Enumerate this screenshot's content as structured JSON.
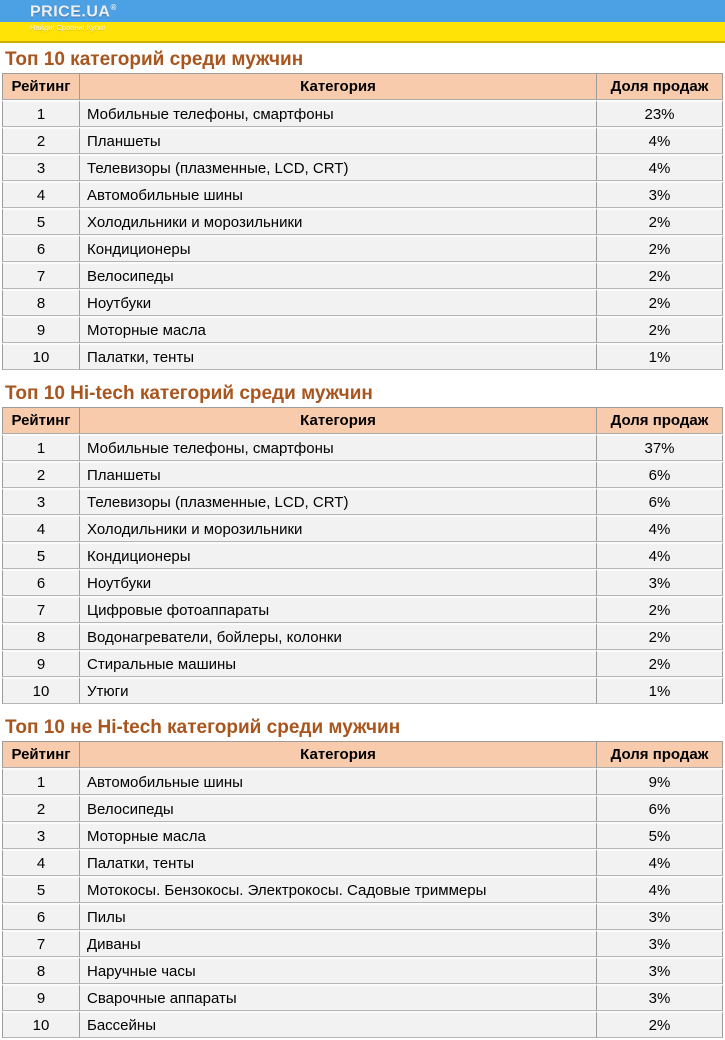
{
  "logo": {
    "brand": "PRICE.UA",
    "reg_mark": "®",
    "tagline": "Найди! Сравни! Купи!"
  },
  "colors": {
    "banner_blue": "#4CA0E4",
    "banner_yellow": "#FFE206",
    "banner_accent": "#CBAE00",
    "title_color": "#A8551E",
    "header_bg": "#F8CBAD",
    "row_bg": "#F2F2F2"
  },
  "tables": [
    {
      "title": "Топ 10 категорий среди мужчин",
      "columns": [
        "Рейтинг",
        "Категория",
        "Доля продаж"
      ],
      "rows": [
        {
          "rank": "1",
          "category": "Мобильные телефоны, смартфоны",
          "share": "23%"
        },
        {
          "rank": "2",
          "category": "Планшеты",
          "share": "4%"
        },
        {
          "rank": "3",
          "category": "Телевизоры (плазменные, LCD, CRT)",
          "share": "4%"
        },
        {
          "rank": "4",
          "category": "Автомобильные шины",
          "share": "3%"
        },
        {
          "rank": "5",
          "category": "Холодильники и морозильники",
          "share": "2%"
        },
        {
          "rank": "6",
          "category": "Кондиционеры",
          "share": "2%"
        },
        {
          "rank": "7",
          "category": "Велосипеды",
          "share": "2%"
        },
        {
          "rank": "8",
          "category": "Ноутбуки",
          "share": "2%"
        },
        {
          "rank": "9",
          "category": "Моторные масла",
          "share": "2%"
        },
        {
          "rank": "10",
          "category": "Палатки, тенты",
          "share": "1%"
        }
      ]
    },
    {
      "title": "Топ 10 Hi-tech категорий среди мужчин",
      "columns": [
        "Рейтинг",
        "Категория",
        "Доля продаж"
      ],
      "rows": [
        {
          "rank": "1",
          "category": "Мобильные телефоны, смартфоны",
          "share": "37%"
        },
        {
          "rank": "2",
          "category": "Планшеты",
          "share": "6%"
        },
        {
          "rank": "3",
          "category": "Телевизоры (плазменные, LCD, CRT)",
          "share": "6%"
        },
        {
          "rank": "4",
          "category": "Холодильники и морозильники",
          "share": "4%"
        },
        {
          "rank": "5",
          "category": "Кондиционеры",
          "share": "4%"
        },
        {
          "rank": "6",
          "category": "Ноутбуки",
          "share": "3%"
        },
        {
          "rank": "7",
          "category": "Цифровые фотоаппараты",
          "share": "2%"
        },
        {
          "rank": "8",
          "category": "Водонагреватели, бойлеры, колонки",
          "share": "2%"
        },
        {
          "rank": "9",
          "category": "Стиральные машины",
          "share": "2%"
        },
        {
          "rank": "10",
          "category": "Утюги",
          "share": "1%"
        }
      ]
    },
    {
      "title": "Топ 10 не Hi-tech категорий среди мужчин",
      "columns": [
        "Рейтинг",
        "Категория",
        "Доля продаж"
      ],
      "rows": [
        {
          "rank": "1",
          "category": "Автомобильные шины",
          "share": "9%"
        },
        {
          "rank": "2",
          "category": "Велосипеды",
          "share": "6%"
        },
        {
          "rank": "3",
          "category": "Моторные масла",
          "share": "5%"
        },
        {
          "rank": "4",
          "category": "Палатки, тенты",
          "share": "4%"
        },
        {
          "rank": "5",
          "category": "Мотокосы. Бензокосы. Электрокосы. Садовые триммеры",
          "share": "4%"
        },
        {
          "rank": "6",
          "category": "Пилы",
          "share": "3%"
        },
        {
          "rank": "7",
          "category": "Диваны",
          "share": "3%"
        },
        {
          "rank": "8",
          "category": "Наручные часы",
          "share": "3%"
        },
        {
          "rank": "9",
          "category": "Сварочные аппараты",
          "share": "3%"
        },
        {
          "rank": "10",
          "category": "Бассейны",
          "share": "2%"
        }
      ]
    }
  ]
}
